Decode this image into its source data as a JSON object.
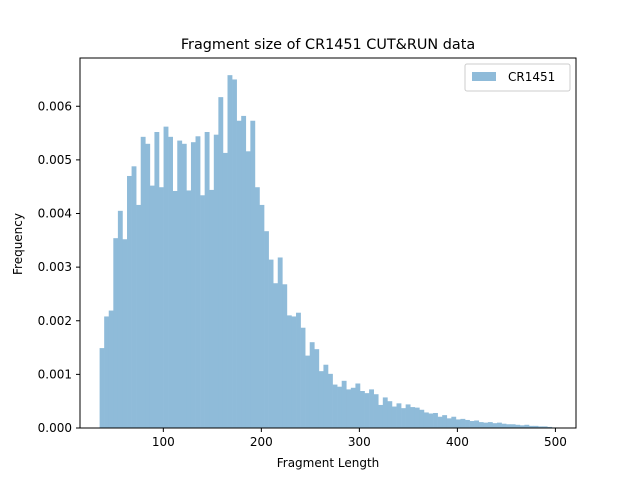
{
  "chart_data": {
    "type": "bar",
    "title": "Fragment size of CR1451 CUT&RUN data",
    "xlabel": "Fragment Length",
    "ylabel": "Frequency",
    "xlim": [
      15,
      521
    ],
    "ylim": [
      0,
      0.0069
    ],
    "x_ticks": [
      100,
      200,
      300,
      400,
      500
    ],
    "x_tick_labels": [
      "100",
      "200",
      "300",
      "400",
      "500"
    ],
    "y_ticks": [
      0,
      0.001,
      0.002,
      0.003,
      0.004,
      0.005,
      0.006
    ],
    "y_tick_labels": [
      "0.000",
      "0.001",
      "0.002",
      "0.003",
      "0.004",
      "0.005",
      "0.006"
    ],
    "legend_position": "top-right",
    "bin_start": 35,
    "bin_width": 4.66,
    "series": [
      {
        "name": "CR1451",
        "color": "#8fbbd9",
        "values": [
          0.00149,
          0.00208,
          0.00219,
          0.00354,
          0.00405,
          0.00352,
          0.0047,
          0.00488,
          0.00416,
          0.00543,
          0.0053,
          0.00452,
          0.00552,
          0.00449,
          0.00562,
          0.00543,
          0.00442,
          0.00536,
          0.0053,
          0.00443,
          0.00533,
          0.00544,
          0.00434,
          0.00552,
          0.00444,
          0.00547,
          0.00617,
          0.00513,
          0.00658,
          0.0065,
          0.00573,
          0.00582,
          0.00516,
          0.00573,
          0.00449,
          0.00416,
          0.00367,
          0.00314,
          0.0027,
          0.00318,
          0.00268,
          0.0021,
          0.00208,
          0.00215,
          0.00187,
          0.00135,
          0.0016,
          0.00147,
          0.00106,
          0.00118,
          0.00101,
          0.00081,
          0.00077,
          0.00088,
          0.00072,
          0.00075,
          0.00083,
          0.00069,
          0.00065,
          0.00072,
          0.00063,
          0.00043,
          0.00057,
          0.0005,
          0.0004,
          0.00046,
          0.00037,
          0.00044,
          0.00039,
          0.00038,
          0.00034,
          0.00029,
          0.00027,
          0.00028,
          0.00021,
          0.00024,
          0.00018,
          0.00021,
          0.00016,
          0.00017,
          0.00015,
          0.00013,
          0.00014,
          0.00011,
          0.0001,
          0.00011,
          9e-05,
          0.0001,
          8e-05,
          7e-05,
          7e-05,
          6e-05,
          5e-05,
          6e-05,
          4e-05,
          4e-05,
          3e-05,
          3e-05,
          2e-05,
          1e-05
        ]
      }
    ]
  }
}
